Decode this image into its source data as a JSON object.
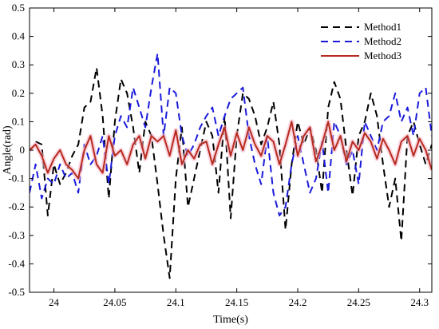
{
  "chart_data": {
    "type": "line",
    "xlabel": "Time(s)",
    "ylabel": "Angle(rad)",
    "xlim": [
      23.98,
      24.31
    ],
    "ylim": [
      -0.5,
      0.5
    ],
    "x_ticks": [
      "24",
      "24.05",
      "24.1",
      "24.15",
      "24.2",
      "24.25",
      "24.3"
    ],
    "y_ticks": [
      "0.5",
      "0.4",
      "0.3",
      "0.2",
      "0.1",
      "0",
      "-0.1",
      "-0.2",
      "-0.3",
      "-0.4",
      "-0.5"
    ],
    "grid": false,
    "legend": {
      "placement": "top-right"
    },
    "series": [
      {
        "name": "Method1",
        "color": "#000000",
        "dash": "9,6",
        "x": [
          23.985,
          23.99,
          23.995,
          24.0,
          24.005,
          24.01,
          24.015,
          24.02,
          24.025,
          24.03,
          24.035,
          24.04,
          24.045,
          24.05,
          24.055,
          24.06,
          24.065,
          24.07,
          24.075,
          24.08,
          24.085,
          24.09,
          24.095,
          24.1,
          24.105,
          24.11,
          24.115,
          24.12,
          24.125,
          24.13,
          24.135,
          24.14,
          24.145,
          24.15,
          24.155,
          24.16,
          24.165,
          24.17,
          24.175,
          24.18,
          24.185,
          24.19,
          24.195,
          24.2,
          24.205,
          24.21,
          24.215,
          24.22,
          24.225,
          24.23,
          24.235,
          24.24,
          24.245,
          24.25,
          24.255,
          24.26,
          24.265,
          24.27,
          24.275,
          24.28,
          24.285,
          24.29,
          24.295,
          24.3,
          24.305,
          24.31
        ],
        "y": [
          0.03,
          0.02,
          -0.23,
          -0.05,
          -0.12,
          -0.08,
          -0.02,
          0.02,
          0.15,
          0.17,
          0.29,
          0.12,
          -0.17,
          0.1,
          0.25,
          0.2,
          0.08,
          -0.08,
          0.1,
          0.05,
          -0.12,
          -0.3,
          -0.45,
          -0.1,
          0.08,
          -0.2,
          -0.1,
          0.0,
          0.1,
          0.05,
          -0.15,
          0.12,
          -0.24,
          0.05,
          0.2,
          0.18,
          0.12,
          0.02,
          0.08,
          0.17,
          0.02,
          -0.28,
          -0.05,
          0.1,
          0.02,
          0.08,
          0.0,
          -0.15,
          0.15,
          0.24,
          0.18,
          0.0,
          -0.16,
          0.05,
          0.1,
          0.2,
          0.12,
          -0.05,
          -0.2,
          -0.1,
          -0.32,
          0.05,
          0.1,
          0.02,
          -0.05,
          0.02
        ]
      },
      {
        "name": "Method2",
        "color": "#1a1adb",
        "dash": "9,6",
        "x": [
          23.98,
          23.985,
          23.99,
          23.995,
          24.0,
          24.005,
          24.01,
          24.015,
          24.02,
          24.025,
          24.03,
          24.035,
          24.04,
          24.045,
          24.05,
          24.055,
          24.06,
          24.065,
          24.07,
          24.075,
          24.08,
          24.085,
          24.09,
          24.095,
          24.1,
          24.105,
          24.11,
          24.115,
          24.12,
          24.125,
          24.13,
          24.135,
          24.14,
          24.145,
          24.15,
          24.155,
          24.16,
          24.165,
          24.17,
          24.175,
          24.18,
          24.185,
          24.19,
          24.195,
          24.2,
          24.205,
          24.21,
          24.215,
          24.22,
          24.225,
          24.23,
          24.235,
          24.24,
          24.245,
          24.25,
          24.255,
          24.26,
          24.265,
          24.27,
          24.275,
          24.28,
          24.285,
          24.29,
          24.295,
          24.3,
          24.305,
          24.31
        ],
        "y": [
          -0.15,
          -0.05,
          -0.17,
          -0.1,
          -0.12,
          -0.05,
          -0.1,
          -0.08,
          -0.15,
          0.02,
          -0.05,
          -0.02,
          0.05,
          -0.12,
          0.05,
          0.12,
          0.08,
          0.22,
          0.15,
          0.08,
          0.22,
          0.34,
          0.05,
          0.22,
          0.2,
          0.05,
          -0.02,
          0.02,
          0.08,
          0.12,
          0.15,
          0.05,
          0.12,
          0.18,
          0.2,
          0.22,
          0.05,
          -0.05,
          -0.12,
          0.05,
          -0.15,
          -0.23,
          -0.2,
          -0.05,
          0.05,
          -0.05,
          -0.15,
          -0.1,
          0.03,
          -0.15,
          0.1,
          0.05,
          -0.05,
          0.0,
          -0.12,
          0.1,
          0.05,
          0.0,
          0.1,
          0.12,
          0.2,
          0.1,
          0.15,
          0.05,
          0.2,
          0.22,
          0.05
        ]
      },
      {
        "name": "Method3",
        "color": "#b82a1e",
        "dash": "",
        "x": [
          23.98,
          23.985,
          23.99,
          23.995,
          24.0,
          24.005,
          24.01,
          24.015,
          24.02,
          24.025,
          24.03,
          24.035,
          24.04,
          24.045,
          24.05,
          24.055,
          24.06,
          24.065,
          24.07,
          24.075,
          24.08,
          24.085,
          24.09,
          24.095,
          24.1,
          24.105,
          24.11,
          24.115,
          24.12,
          24.125,
          24.13,
          24.135,
          24.14,
          24.145,
          24.15,
          24.155,
          24.16,
          24.165,
          24.17,
          24.175,
          24.18,
          24.185,
          24.19,
          24.195,
          24.2,
          24.205,
          24.21,
          24.215,
          24.22,
          24.225,
          24.23,
          24.235,
          24.24,
          24.245,
          24.25,
          24.255,
          24.26,
          24.265,
          24.27,
          24.275,
          24.28,
          24.285,
          24.29,
          24.295,
          24.3,
          24.305,
          24.31
        ],
        "y": [
          0.0,
          0.02,
          -0.02,
          -0.08,
          -0.03,
          0.0,
          -0.05,
          -0.07,
          -0.1,
          0.0,
          0.05,
          -0.05,
          -0.08,
          0.05,
          -0.02,
          0.0,
          -0.05,
          0.02,
          0.05,
          -0.03,
          0.05,
          0.03,
          0.05,
          -0.02,
          0.07,
          -0.05,
          0.0,
          -0.03,
          0.02,
          0.03,
          -0.05,
          0.02,
          0.08,
          -0.02,
          0.06,
          0.0,
          0.08,
          0.02,
          -0.02,
          0.05,
          0.03,
          -0.05,
          0.02,
          0.1,
          -0.02,
          0.05,
          0.08,
          -0.04,
          0.02,
          0.1,
          0.0,
          0.05,
          -0.04,
          0.03,
          0.0,
          0.06,
          0.03,
          -0.03,
          0.04,
          0.0,
          -0.05,
          0.03,
          0.05,
          -0.02,
          0.04,
          0.0,
          -0.07
        ]
      }
    ]
  }
}
